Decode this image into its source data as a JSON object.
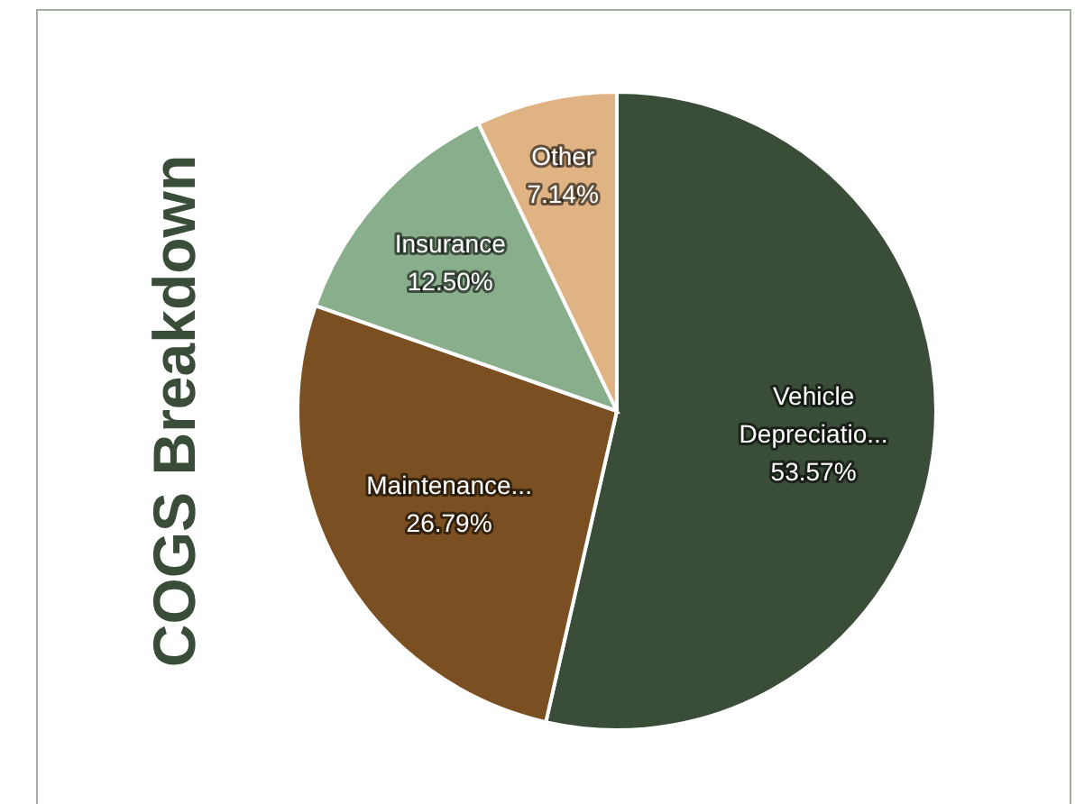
{
  "chart_data": {
    "type": "pie",
    "title": "COGS Breakdown",
    "categories": [
      "Vehicle Depreciatio...",
      "Maintenance...",
      "Insurance",
      "Other"
    ],
    "values": [
      53.57,
      26.79,
      12.5,
      7.14
    ],
    "colors": [
      "#3a4d39",
      "#7a5022",
      "#88ae8b",
      "#dfb383"
    ],
    "value_labels": [
      "53.57%",
      "26.79%",
      "12.50%",
      "7.14%"
    ]
  }
}
